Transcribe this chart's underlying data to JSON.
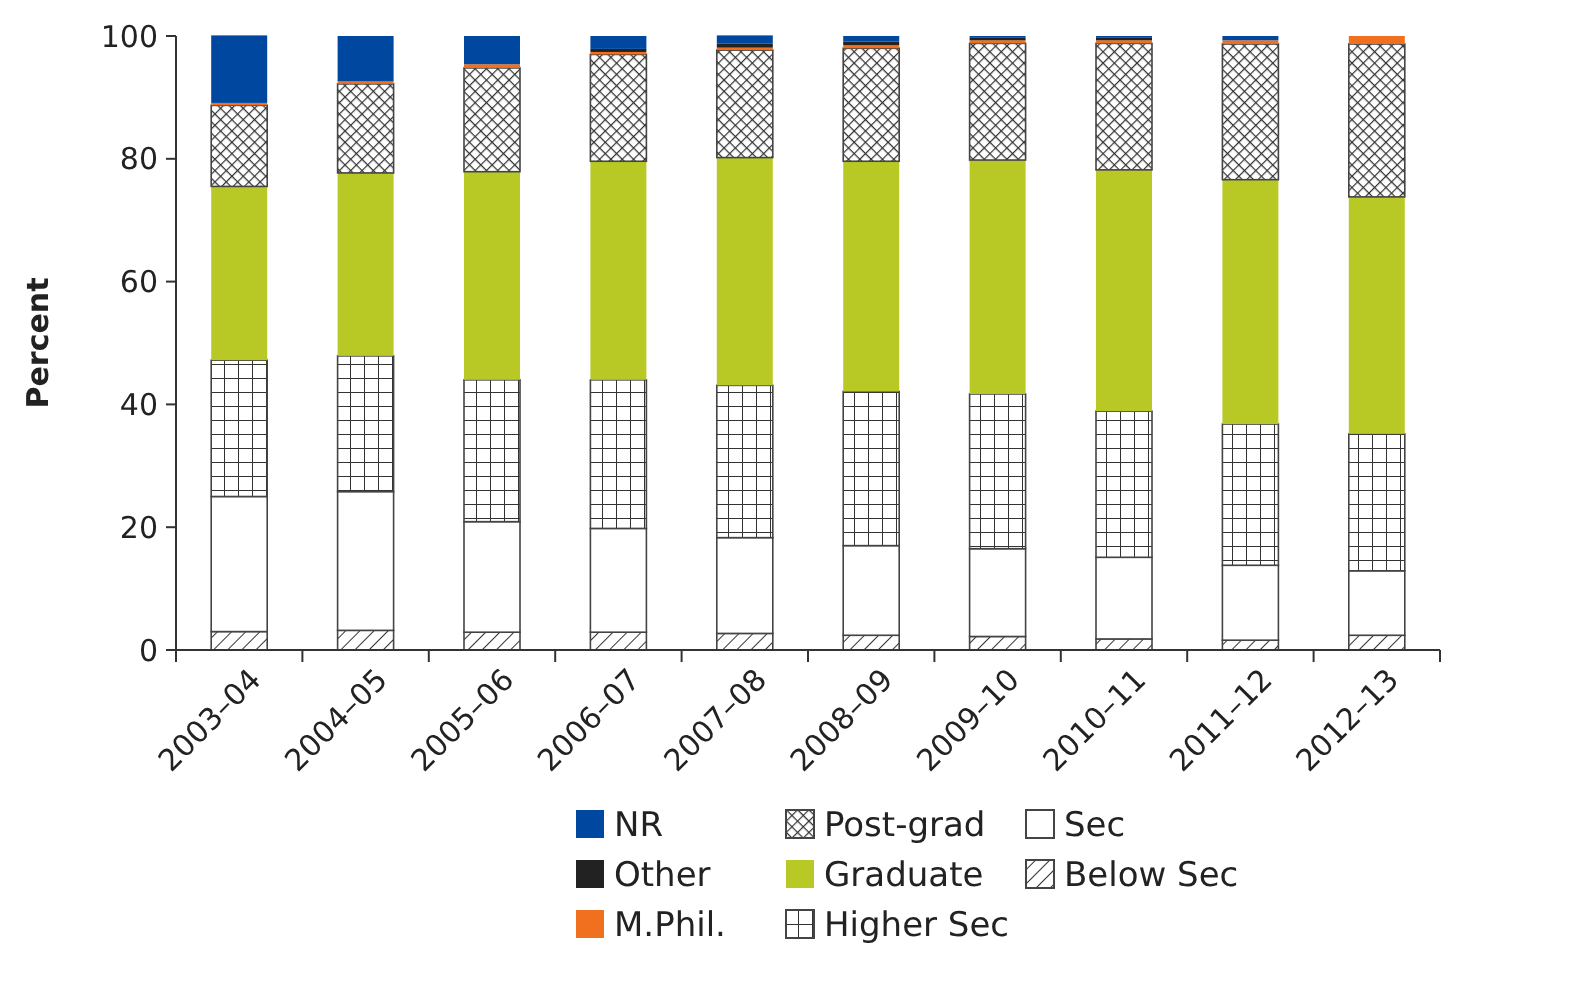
{
  "chart_data": {
    "type": "bar",
    "stacked": true,
    "ylabel": "Percent",
    "ylim": [
      0,
      100
    ],
    "yticks": [
      0,
      20,
      40,
      60,
      80,
      100
    ],
    "grid": false,
    "legend": "bottom",
    "categories": [
      "2003–04",
      "2004–05",
      "2005–06",
      "2006–07",
      "2007–08",
      "2008–09",
      "2009–10",
      "2010–11",
      "2011–12",
      "2012–13"
    ],
    "series": [
      {
        "name": "Below Sec",
        "color": "#444444",
        "values": [
          3,
          3.2,
          2.9,
          2.9,
          2.7,
          2.4,
          2.2,
          1.8,
          1.6,
          2.4
        ]
      },
      {
        "name": "Sec",
        "color": "#444444",
        "values": [
          22,
          22.6,
          18,
          16.9,
          15.6,
          14.6,
          14.3,
          13.3,
          12.2,
          10.5
        ]
      },
      {
        "name": "Higher Sec",
        "color": "#444444",
        "values": [
          22.2,
          22.1,
          23.1,
          24.2,
          24.8,
          25.1,
          25.2,
          23.8,
          23,
          22.3
        ]
      },
      {
        "name": "Graduate",
        "color": "#b8c926",
        "values": [
          28.3,
          29.8,
          33.9,
          35.6,
          37.1,
          37.5,
          38.1,
          39.3,
          39.8,
          38.6
        ]
      },
      {
        "name": "Post-grad",
        "color": "#444444",
        "values": [
          13.2,
          14.5,
          16.9,
          17.4,
          17.5,
          18.4,
          19,
          20.6,
          22.1,
          24.9
        ]
      },
      {
        "name": "M.Phil.",
        "color": "#f07020",
        "values": [
          0.4,
          0.4,
          0.6,
          0.4,
          0.4,
          0.5,
          0.5,
          0.5,
          0.6,
          1.3
        ]
      },
      {
        "name": "Other",
        "color": "#222222",
        "values": [
          0,
          0,
          0,
          0.5,
          0.7,
          0.6,
          0.4,
          0.4,
          0,
          0
        ]
      },
      {
        "name": "NR",
        "color": "#0047a0",
        "values": [
          11,
          7.4,
          4.6,
          2.1,
          1.3,
          0.9,
          0.3,
          0.3,
          0.7,
          0
        ]
      }
    ]
  }
}
